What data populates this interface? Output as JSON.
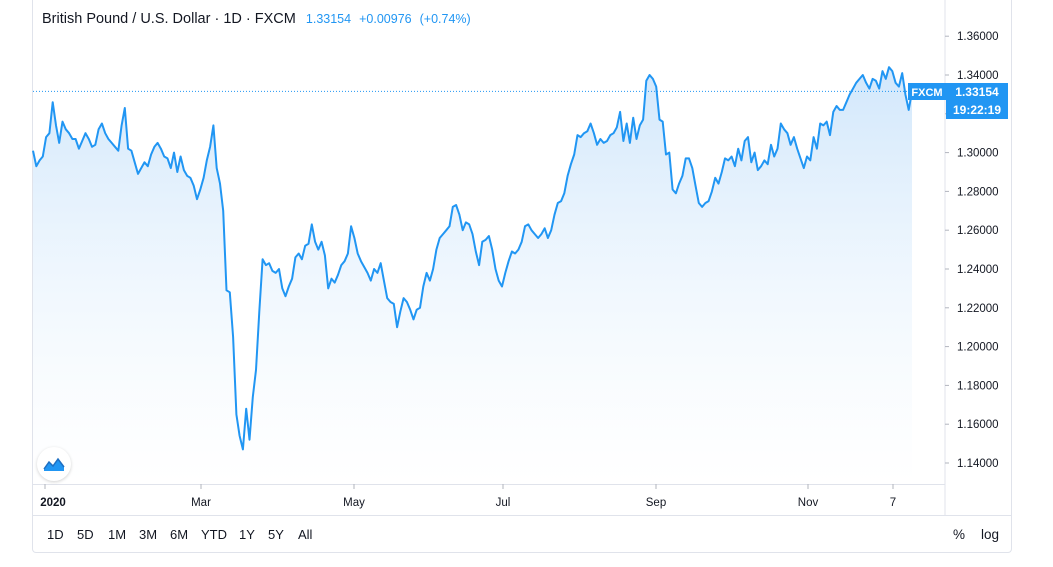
{
  "legend": {
    "symbol_name": "British Pound / U.S. Dollar",
    "interval": "1D",
    "source": "FXCM",
    "last_price": "1.33154",
    "change": "+0.00976",
    "change_pct": "(+0.74%)"
  },
  "price_tag": {
    "source": "FXCM",
    "price": "1.33154",
    "countdown": "19:22:19"
  },
  "ranges": [
    "1D",
    "5D",
    "1M",
    "3M",
    "6M",
    "YTD",
    "1Y",
    "5Y",
    "All"
  ],
  "toolbar_right": {
    "percent": "%",
    "log": "log"
  },
  "colors": {
    "line": "#2196f3",
    "area_top": "#cfe6fb",
    "area_bottom": "#ffffff",
    "tag_bg": "#2196f3"
  },
  "icons": {
    "logo": "tradingview-logo-icon"
  },
  "chart_data": {
    "type": "area",
    "title": "British Pound / U.S. Dollar · 1D · FXCM",
    "xlabel": "",
    "ylabel": "",
    "ylim": [
      1.13,
      1.37
    ],
    "grid": false,
    "x_ticks": [
      "2020",
      "Mar",
      "May",
      "Jul",
      "Sep",
      "Nov",
      "7"
    ],
    "y_ticks": [
      "1.14000",
      "1.16000",
      "1.18000",
      "1.20000",
      "1.22000",
      "1.24000",
      "1.26000",
      "1.28000",
      "1.30000",
      "1.32000",
      "1.34000",
      "1.36000"
    ],
    "last_value": 1.33154,
    "series": [
      {
        "values": [
          1.301,
          1.293,
          1.296,
          1.298,
          1.308,
          1.31,
          1.326,
          1.314,
          1.305,
          1.316,
          1.312,
          1.31,
          1.307,
          1.307,
          1.302,
          1.306,
          1.31,
          1.307,
          1.303,
          1.304,
          1.312,
          1.315,
          1.31,
          1.307,
          1.305,
          1.303,
          1.301,
          1.314,
          1.323,
          1.302,
          1.301,
          1.295,
          1.289,
          1.292,
          1.295,
          1.293,
          1.299,
          1.303,
          1.305,
          1.302,
          1.298,
          1.297,
          1.292,
          1.3,
          1.29,
          1.298,
          1.291,
          1.288,
          1.287,
          1.283,
          1.276,
          1.281,
          1.287,
          1.296,
          1.303,
          1.314,
          1.292,
          1.284,
          1.27,
          1.229,
          1.228,
          1.205,
          1.165,
          1.154,
          1.147,
          1.168,
          1.152,
          1.174,
          1.188,
          1.218,
          1.245,
          1.242,
          1.243,
          1.239,
          1.238,
          1.24,
          1.23,
          1.226,
          1.231,
          1.235,
          1.246,
          1.248,
          1.245,
          1.252,
          1.253,
          1.263,
          1.254,
          1.25,
          1.254,
          1.247,
          1.23,
          1.235,
          1.233,
          1.237,
          1.242,
          1.244,
          1.248,
          1.262,
          1.256,
          1.248,
          1.244,
          1.241,
          1.238,
          1.234,
          1.24,
          1.238,
          1.243,
          1.234,
          1.225,
          1.223,
          1.222,
          1.21,
          1.218,
          1.225,
          1.223,
          1.219,
          1.214,
          1.219,
          1.22,
          1.231,
          1.238,
          1.234,
          1.24,
          1.25,
          1.256,
          1.258,
          1.26,
          1.262,
          1.272,
          1.273,
          1.268,
          1.26,
          1.264,
          1.263,
          1.258,
          1.249,
          1.242,
          1.254,
          1.255,
          1.257,
          1.25,
          1.24,
          1.234,
          1.231,
          1.238,
          1.244,
          1.249,
          1.248,
          1.25,
          1.254,
          1.262,
          1.263,
          1.26,
          1.258,
          1.256,
          1.258,
          1.261,
          1.256,
          1.26,
          1.268,
          1.274,
          1.275,
          1.279,
          1.288,
          1.294,
          1.299,
          1.309,
          1.308,
          1.31,
          1.311,
          1.315,
          1.31,
          1.304,
          1.307,
          1.305,
          1.306,
          1.309,
          1.31,
          1.313,
          1.321,
          1.306,
          1.315,
          1.305,
          1.318,
          1.307,
          1.314,
          1.317,
          1.337,
          1.34,
          1.338,
          1.334,
          1.317,
          1.316,
          1.299,
          1.3,
          1.281,
          1.279,
          1.284,
          1.288,
          1.297,
          1.297,
          1.292,
          1.283,
          1.274,
          1.272,
          1.274,
          1.275,
          1.28,
          1.287,
          1.284,
          1.29,
          1.297,
          1.296,
          1.298,
          1.293,
          1.302,
          1.296,
          1.306,
          1.308,
          1.295,
          1.3,
          1.291,
          1.293,
          1.296,
          1.294,
          1.304,
          1.298,
          1.302,
          1.315,
          1.312,
          1.31,
          1.304,
          1.308,
          1.302,
          1.297,
          1.292,
          1.298,
          1.296,
          1.308,
          1.302,
          1.315,
          1.314,
          1.316,
          1.309,
          1.321,
          1.324,
          1.322,
          1.322,
          1.326,
          1.33,
          1.333,
          1.336,
          1.338,
          1.34,
          1.336,
          1.333,
          1.338,
          1.337,
          1.333,
          1.342,
          1.338,
          1.344,
          1.342,
          1.336,
          1.334,
          1.341,
          1.33,
          1.322,
          1.3315
        ]
      }
    ]
  }
}
